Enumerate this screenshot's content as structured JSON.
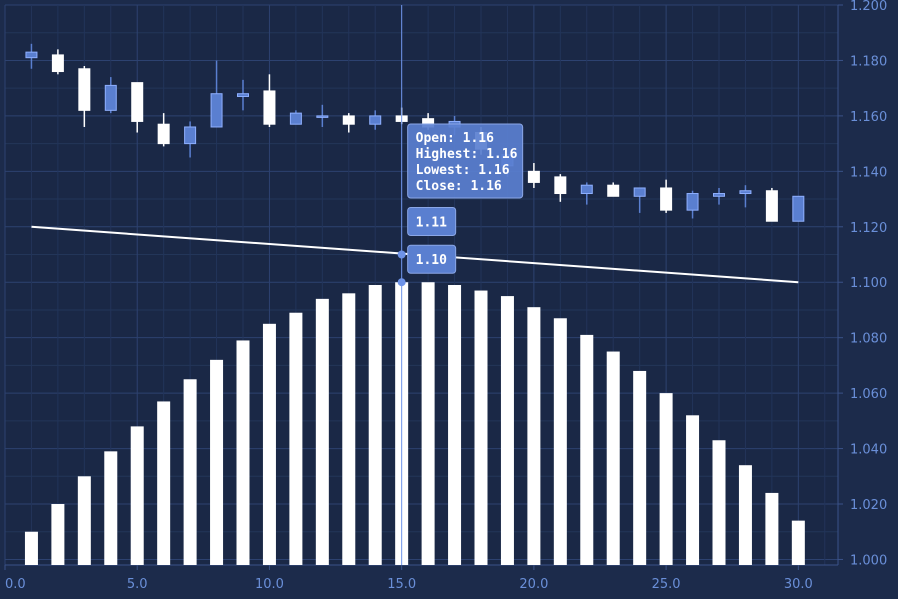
{
  "chart_data": {
    "type": "candlestick+bar+line",
    "x_axis": {
      "min": 0,
      "max": 31.5,
      "ticks": [
        0,
        5,
        10,
        15,
        20,
        25,
        30
      ],
      "tick_labels": [
        "0.0",
        "5.0",
        "10.0",
        "15.0",
        "20.0",
        "25.0",
        "30.0"
      ]
    },
    "y_axis": {
      "min": 0.998,
      "max": 1.2,
      "position": "right",
      "ticks": [
        1.0,
        1.02,
        1.04,
        1.06,
        1.08,
        1.1,
        1.12,
        1.14,
        1.16,
        1.18,
        1.2
      ],
      "tick_labels": [
        "1.000",
        "1.020",
        "1.040",
        "1.060",
        "1.080",
        "1.100",
        "1.120",
        "1.140",
        "1.160",
        "1.180",
        "1.200"
      ]
    },
    "candles": [
      {
        "x": 1,
        "open": 1.181,
        "high": 1.186,
        "low": 1.177,
        "close": 1.183
      },
      {
        "x": 2,
        "open": 1.182,
        "high": 1.184,
        "low": 1.175,
        "close": 1.176
      },
      {
        "x": 3,
        "open": 1.177,
        "high": 1.178,
        "low": 1.156,
        "close": 1.162
      },
      {
        "x": 4,
        "open": 1.162,
        "high": 1.174,
        "low": 1.161,
        "close": 1.171
      },
      {
        "x": 5,
        "open": 1.172,
        "high": 1.172,
        "low": 1.154,
        "close": 1.158
      },
      {
        "x": 6,
        "open": 1.157,
        "high": 1.161,
        "low": 1.149,
        "close": 1.15
      },
      {
        "x": 7,
        "open": 1.15,
        "high": 1.158,
        "low": 1.145,
        "close": 1.156
      },
      {
        "x": 8,
        "open": 1.156,
        "high": 1.18,
        "low": 1.156,
        "close": 1.168
      },
      {
        "x": 9,
        "open": 1.167,
        "high": 1.173,
        "low": 1.162,
        "close": 1.168
      },
      {
        "x": 10,
        "open": 1.169,
        "high": 1.175,
        "low": 1.156,
        "close": 1.157
      },
      {
        "x": 11,
        "open": 1.157,
        "high": 1.162,
        "low": 1.157,
        "close": 1.161
      },
      {
        "x": 12,
        "open": 1.16,
        "high": 1.164,
        "low": 1.156,
        "close": 1.16
      },
      {
        "x": 13,
        "open": 1.16,
        "high": 1.161,
        "low": 1.154,
        "close": 1.157
      },
      {
        "x": 14,
        "open": 1.157,
        "high": 1.162,
        "low": 1.155,
        "close": 1.16
      },
      {
        "x": 15,
        "open": 1.16,
        "high": 1.163,
        "low": 1.157,
        "close": 1.158
      },
      {
        "x": 16,
        "open": 1.159,
        "high": 1.161,
        "low": 1.155,
        "close": 1.156
      },
      {
        "x": 17,
        "open": 1.156,
        "high": 1.16,
        "low": 1.153,
        "close": 1.158
      },
      {
        "x": 18,
        "open": 1.154,
        "high": 1.156,
        "low": 1.146,
        "close": 1.148
      },
      {
        "x": 19,
        "open": 1.142,
        "high": 1.146,
        "low": 1.138,
        "close": 1.146
      },
      {
        "x": 20,
        "open": 1.14,
        "high": 1.143,
        "low": 1.134,
        "close": 1.136
      },
      {
        "x": 21,
        "open": 1.138,
        "high": 1.139,
        "low": 1.129,
        "close": 1.132
      },
      {
        "x": 22,
        "open": 1.132,
        "high": 1.136,
        "low": 1.128,
        "close": 1.135
      },
      {
        "x": 23,
        "open": 1.135,
        "high": 1.136,
        "low": 1.131,
        "close": 1.131
      },
      {
        "x": 24,
        "open": 1.131,
        "high": 1.134,
        "low": 1.125,
        "close": 1.134
      },
      {
        "x": 25,
        "open": 1.134,
        "high": 1.137,
        "low": 1.125,
        "close": 1.126
      },
      {
        "x": 26,
        "open": 1.126,
        "high": 1.133,
        "low": 1.123,
        "close": 1.132
      },
      {
        "x": 27,
        "open": 1.131,
        "high": 1.134,
        "low": 1.128,
        "close": 1.132
      },
      {
        "x": 28,
        "open": 1.132,
        "high": 1.135,
        "low": 1.127,
        "close": 1.133
      },
      {
        "x": 29,
        "open": 1.133,
        "high": 1.134,
        "low": 1.122,
        "close": 1.122
      },
      {
        "x": 30,
        "open": 1.122,
        "high": 1.131,
        "low": 1.122,
        "close": 1.131
      }
    ],
    "bars": {
      "x": [
        1,
        2,
        3,
        4,
        5,
        6,
        7,
        8,
        9,
        10,
        11,
        12,
        13,
        14,
        15,
        16,
        17,
        18,
        19,
        20,
        21,
        22,
        23,
        24,
        25,
        26,
        27,
        28,
        29,
        30
      ],
      "values": [
        1.01,
        1.02,
        1.03,
        1.039,
        1.048,
        1.057,
        1.065,
        1.072,
        1.079,
        1.085,
        1.089,
        1.094,
        1.096,
        1.099,
        1.1,
        1.1,
        1.099,
        1.097,
        1.095,
        1.091,
        1.087,
        1.081,
        1.075,
        1.068,
        1.06,
        1.052,
        1.043,
        1.034,
        1.024,
        1.014
      ]
    },
    "line": {
      "x": [
        1,
        30
      ],
      "y": [
        1.12,
        1.1
      ]
    },
    "cursor": {
      "x": 15,
      "line_marker": 1.11,
      "bar_marker": 1.1
    },
    "tooltips": {
      "ohlc": [
        "Open: 1.16",
        "Highest: 1.16",
        "Lowest: 1.16",
        "Close: 1.16"
      ],
      "line_value": "1.11",
      "bar_value": "1.10"
    },
    "colors": {
      "background": "#1c2b4b",
      "grid": "#2a3d63",
      "up_candle": "#5a7fd0",
      "down_candle": "#ffffff",
      "bars": "#ffffff",
      "line": "#ffffff",
      "axis_text": "#6a8fd8",
      "tooltip": "#5a7fd0"
    }
  }
}
